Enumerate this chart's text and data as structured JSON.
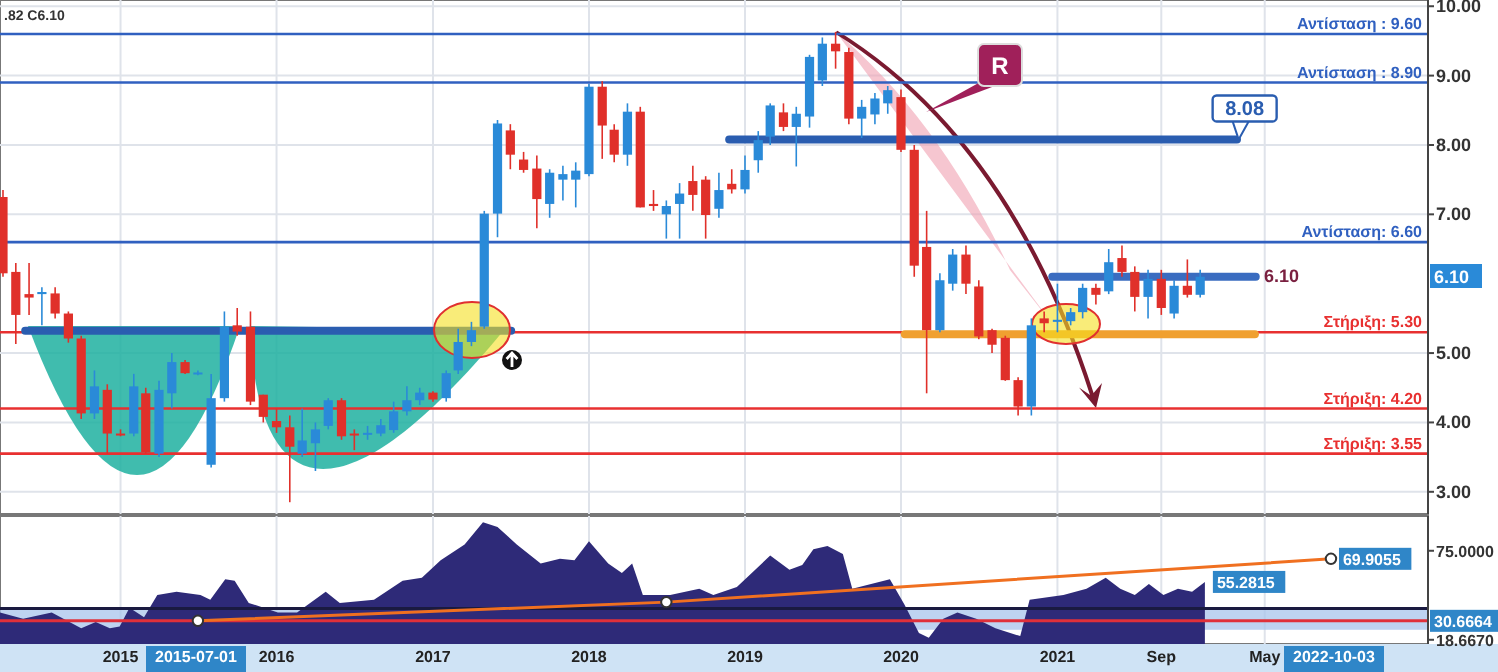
{
  "chart_data": [
    {
      "type": "candlestick",
      "tick_labels": "y",
      "grid": true,
      "xlim": [
        "2014-03-25",
        "2023-05-18"
      ],
      "ylim": [
        2.68,
        10.09
      ],
      "xticks": [
        {
          "value": "2015",
          "label": null
        },
        {
          "value": "2016",
          "label": null
        },
        {
          "value": "2017",
          "label": null
        },
        {
          "value": "2018",
          "label": null
        },
        {
          "value": "2019",
          "label": null
        },
        {
          "value": "2020",
          "label": null
        },
        {
          "value": "2021",
          "label": null
        },
        {
          "value": "2021-09",
          "label": null
        },
        {
          "value": "2022-05",
          "label": null
        }
      ],
      "yticks": [
        {
          "value": 3,
          "label": "3.00"
        },
        {
          "value": 4,
          "label": "4.00"
        },
        {
          "value": 5,
          "label": "5.00"
        },
        {
          "value": 7,
          "label": "7.00"
        },
        {
          "value": 8,
          "label": "8.00"
        },
        {
          "value": 9,
          "label": "9.00"
        },
        {
          "value": 10,
          "label": "10.00"
        }
      ],
      "x": [
        "2014-04",
        "2014-05",
        "2014-06",
        "2014-07",
        "2014-08",
        "2014-09",
        "2014-10",
        "2014-11",
        "2014-12",
        "2015-01",
        "2015-02",
        "2015-03",
        "2015-04",
        "2015-05",
        "2015-06",
        "2015-07",
        "2015-08",
        "2015-09",
        "2015-10",
        "2015-11",
        "2015-12",
        "2016-01",
        "2016-02",
        "2016-03",
        "2016-04",
        "2016-05",
        "2016-06",
        "2016-07",
        "2016-08",
        "2016-09",
        "2016-10",
        "2016-11",
        "2016-12",
        "2017-01",
        "2017-02",
        "2017-03",
        "2017-04",
        "2017-05",
        "2017-06",
        "2017-07",
        "2017-08",
        "2017-09",
        "2017-10",
        "2017-11",
        "2017-12",
        "2018-01",
        "2018-02",
        "2018-03",
        "2018-04",
        "2018-05",
        "2018-06",
        "2018-07",
        "2018-08",
        "2018-09",
        "2018-10",
        "2018-11",
        "2018-12",
        "2019-01",
        "2019-02",
        "2019-03",
        "2019-04",
        "2019-05",
        "2019-06",
        "2019-07",
        "2019-08",
        "2019-09",
        "2019-10",
        "2019-11",
        "2019-12",
        "2020-01",
        "2020-02",
        "2020-03",
        "2020-04",
        "2020-05",
        "2020-06",
        "2020-07",
        "2020-08",
        "2020-09",
        "2020-10",
        "2020-11",
        "2020-12",
        "2021-01",
        "2021-02",
        "2021-03",
        "2021-04",
        "2021-05",
        "2021-06",
        "2021-07",
        "2021-08",
        "2021-09",
        "2021-10",
        "2021-11",
        "2021-12"
      ],
      "ohlc": [
        [
          7.25,
          7.35,
          6.1,
          6.15
        ],
        [
          6.17,
          6.3,
          5.13,
          5.55
        ],
        [
          5.85,
          6.3,
          5.55,
          5.8
        ],
        [
          5.85,
          5.95,
          5.4,
          5.88
        ],
        [
          5.86,
          5.95,
          5.5,
          5.57
        ],
        [
          5.57,
          5.6,
          5.15,
          5.21
        ],
        [
          5.21,
          5.25,
          4.05,
          4.13
        ],
        [
          4.13,
          4.75,
          4.05,
          4.52
        ],
        [
          4.47,
          4.55,
          3.55,
          3.84
        ],
        [
          3.84,
          3.9,
          3.8,
          3.82
        ],
        [
          3.84,
          4.7,
          3.8,
          4.52
        ],
        [
          4.42,
          4.5,
          3.55,
          3.57
        ],
        [
          3.55,
          4.6,
          3.5,
          4.47
        ],
        [
          4.42,
          5.0,
          4.2,
          4.87
        ],
        [
          4.87,
          4.9,
          4.7,
          4.71
        ],
        [
          4.71,
          4.75,
          4.68,
          4.72
        ],
        [
          3.39,
          4.7,
          3.35,
          4.35
        ],
        [
          4.35,
          5.6,
          4.3,
          5.38
        ],
        [
          5.4,
          5.65,
          5.25,
          5.31
        ],
        [
          5.38,
          5.6,
          4.25,
          4.3
        ],
        [
          4.4,
          4.4,
          4.0,
          4.08
        ],
        [
          4.02,
          4.2,
          3.85,
          3.93
        ],
        [
          3.93,
          4.1,
          2.85,
          3.65
        ],
        [
          3.55,
          4.2,
          3.5,
          3.74
        ],
        [
          3.7,
          4.0,
          3.3,
          3.9
        ],
        [
          3.95,
          4.35,
          3.9,
          4.32
        ],
        [
          4.32,
          4.35,
          3.75,
          3.8
        ],
        [
          3.84,
          3.9,
          3.6,
          3.83
        ],
        [
          3.83,
          3.95,
          3.75,
          3.85
        ],
        [
          3.84,
          4.05,
          3.8,
          3.96
        ],
        [
          3.89,
          4.3,
          3.85,
          4.16
        ],
        [
          4.16,
          4.52,
          4.1,
          4.32
        ],
        [
          4.32,
          4.5,
          4.25,
          4.43
        ],
        [
          4.43,
          4.45,
          4.3,
          4.33
        ],
        [
          4.35,
          4.75,
          4.3,
          4.71
        ],
        [
          4.75,
          5.35,
          4.7,
          5.16
        ],
        [
          5.16,
          5.45,
          5.1,
          5.33
        ],
        [
          5.38,
          7.05,
          5.35,
          7.01
        ],
        [
          7.01,
          8.36,
          6.67,
          8.31
        ],
        [
          8.21,
          8.3,
          7.65,
          7.86
        ],
        [
          7.79,
          7.9,
          7.6,
          7.64
        ],
        [
          7.66,
          7.85,
          6.8,
          7.22
        ],
        [
          7.15,
          7.65,
          6.95,
          7.6
        ],
        [
          7.5,
          7.7,
          7.2,
          7.58
        ],
        [
          7.5,
          7.75,
          7.1,
          7.63
        ],
        [
          7.58,
          8.88,
          7.55,
          8.84
        ],
        [
          8.84,
          8.92,
          7.8,
          8.28
        ],
        [
          8.22,
          8.3,
          7.75,
          7.86
        ],
        [
          7.86,
          8.6,
          7.7,
          8.48
        ],
        [
          8.48,
          8.55,
          7.1,
          7.1
        ],
        [
          7.15,
          7.35,
          7.05,
          7.12
        ],
        [
          7.0,
          7.2,
          6.65,
          7.12
        ],
        [
          7.15,
          7.45,
          6.65,
          7.3
        ],
        [
          7.48,
          7.7,
          7.05,
          7.28
        ],
        [
          7.5,
          7.55,
          6.65,
          6.99
        ],
        [
          7.08,
          7.6,
          6.95,
          7.35
        ],
        [
          7.44,
          7.65,
          7.3,
          7.36
        ],
        [
          7.36,
          7.85,
          7.3,
          7.64
        ],
        [
          7.78,
          8.2,
          7.6,
          8.07
        ],
        [
          8.12,
          8.6,
          8.0,
          8.57
        ],
        [
          8.47,
          8.6,
          8.2,
          8.26
        ],
        [
          8.26,
          8.55,
          7.69,
          8.45
        ],
        [
          8.41,
          9.3,
          8.25,
          9.27
        ],
        [
          8.93,
          9.55,
          8.85,
          9.46
        ],
        [
          9.46,
          9.63,
          9.1,
          9.35
        ],
        [
          9.34,
          9.4,
          8.3,
          8.38
        ],
        [
          8.38,
          8.65,
          8.1,
          8.55
        ],
        [
          8.44,
          8.75,
          8.3,
          8.67
        ],
        [
          8.6,
          8.85,
          8.45,
          8.79
        ],
        [
          8.69,
          8.8,
          7.9,
          7.93
        ],
        [
          7.93,
          8.0,
          6.1,
          6.26
        ],
        [
          6.53,
          7.05,
          4.42,
          5.33
        ],
        [
          5.33,
          6.15,
          5.3,
          6.05
        ],
        [
          6.0,
          6.5,
          5.9,
          6.42
        ],
        [
          6.42,
          6.55,
          5.85,
          6.0
        ],
        [
          5.96,
          6.05,
          5.2,
          5.24
        ],
        [
          5.33,
          5.35,
          5.0,
          5.12
        ],
        [
          5.22,
          5.25,
          4.6,
          4.61
        ],
        [
          4.61,
          4.65,
          4.1,
          4.23
        ],
        [
          4.23,
          5.5,
          4.1,
          5.4
        ],
        [
          5.5,
          5.6,
          5.3,
          5.43
        ],
        [
          5.45,
          6.0,
          5.3,
          5.48
        ],
        [
          5.46,
          5.65,
          5.4,
          5.59
        ],
        [
          5.59,
          6.0,
          5.5,
          5.94
        ],
        [
          5.94,
          6.0,
          5.7,
          5.84
        ],
        [
          5.89,
          6.5,
          5.85,
          6.31
        ],
        [
          6.37,
          6.55,
          6.1,
          6.17
        ],
        [
          6.17,
          6.25,
          5.6,
          5.81
        ],
        [
          5.81,
          6.2,
          5.5,
          6.07
        ],
        [
          6.07,
          6.2,
          5.55,
          5.65
        ],
        [
          5.57,
          6.05,
          5.5,
          5.97
        ],
        [
          5.97,
          6.35,
          5.8,
          5.84
        ],
        [
          5.84,
          6.2,
          5.8,
          6.1
        ]
      ],
      "series": [
        {
          "type": "line",
          "color": "#2a5db0",
          "x": [
            "2014-05-23",
            "2017-07-03"
          ],
          "values": [
            5.32,
            5.32
          ]
        },
        {
          "type": "line",
          "color": "#f0a030",
          "x": [
            "2020-01-10",
            "2022-04-08"
          ],
          "values": [
            5.27,
            5.27
          ]
        },
        {
          "type": "line",
          "color": "#2a5db0",
          "x": [
            "2018-11-25",
            "2022-02-25"
          ],
          "values": [
            8.08,
            8.08
          ]
        },
        {
          "type": "line",
          "color": "#3a6cc0",
          "x": [
            "2020-12-20",
            "2022-04-10"
          ],
          "values": [
            6.1,
            6.1
          ]
        }
      ],
      "ref_lines": [
        {
          "axis": "y",
          "value": 9.6,
          "label": "Αντίσταση : 9.60",
          "color": "#3060c0"
        },
        {
          "axis": "y",
          "value": 8.9,
          "label": "Αντίσταση : 8.90",
          "color": "#3060c0"
        },
        {
          "axis": "y",
          "value": 6.6,
          "label": "Αντίσταση: 6.60",
          "color": "#3060c0"
        },
        {
          "axis": "y",
          "value": 5.3,
          "label": "Στήριξη: 5.30",
          "color": "#e83030"
        },
        {
          "axis": "y",
          "value": 4.2,
          "label": "Στήριξη: 4.20",
          "color": "#e83030"
        },
        {
          "axis": "y",
          "value": 3.55,
          "label": "Στήριξη: 3.55",
          "color": "#e83030"
        }
      ],
      "annotations": [
        ".82 C6.10",
        "R",
        "6.10",
        "6.10",
        {
          "text": "8.08",
          "x": "2022-03-15",
          "y": 8.08
        }
      ]
    },
    {
      "type": "area",
      "grid": "x",
      "xlim": [
        "2014-03-25",
        "2023-05-18"
      ],
      "ylim": [
        16,
        97
      ],
      "xticks": [
        "2015",
        "2016",
        "2017",
        "2018",
        "2019",
        "2020",
        "2021",
        {
          "value": "2021-09",
          "label": "Sep"
        },
        {
          "value": "2022-05",
          "label": "May"
        }
      ],
      "yticks": [
        {
          "value": 75,
          "label": "75.0000"
        },
        {
          "value": 18.667,
          "label": "18.6670"
        }
      ],
      "series": [
        {
          "type": "area",
          "color": "#2e2a78",
          "x": [
            "2014-03-25",
            "2014-05-18",
            "2014-07-24",
            "2014-10-01",
            "2014-11-04",
            "2014-12-07",
            "2014-12-30",
            "2015-01-22",
            "2015-02-25",
            "2015-03-28",
            "2015-05-12",
            "2015-07-07",
            "2015-07-30",
            "2015-09-03",
            "2015-09-25",
            "2015-10-28",
            "2016-01-04",
            "2016-02-18",
            "2016-04-25",
            "2016-05-28",
            "2016-08-16",
            "2016-10-22",
            "2016-12-06",
            "2017-01-19",
            "2017-03-16",
            "2017-04-28",
            "2017-06-01",
            "2017-07-16",
            "2017-09-10",
            "2017-10-25",
            "2017-11-28",
            "2018-01-01",
            "2018-02-15",
            "2018-03-19",
            "2018-04-12",
            "2018-05-07",
            "2018-07-10",
            "2018-09-16",
            "2018-10-19",
            "2018-12-13",
            "2019-03-01",
            "2019-04-15",
            "2019-05-15",
            "2019-06-10",
            "2019-07-13",
            "2019-08-18",
            "2019-09-09",
            "2019-12-06",
            "2020-01-09",
            "2020-02-12",
            "2020-03-06",
            "2020-04-09",
            "2020-05-12",
            "2020-06-25",
            "2020-08-09",
            "2020-10-06",
            "2020-10-28",
            "2021-01-15",
            "2021-03-10",
            "2021-04-24",
            "2021-05-28",
            "2021-07-01",
            "2021-08-03",
            "2021-09-06",
            "2021-10-10",
            "2021-11-12",
            "2021-12-12"
          ],
          "values": [
            36,
            32,
            36,
            26,
            30,
            26,
            27,
            39,
            33,
            47,
            49,
            47,
            44,
            57,
            56,
            42,
            36,
            36,
            49,
            42,
            44,
            56,
            58,
            69,
            79,
            93,
            90,
            79,
            67,
            70,
            69,
            81,
            67,
            61,
            67,
            47,
            47,
            51,
            47,
            52,
            72,
            63,
            66,
            76,
            78,
            73,
            51,
            57,
            41,
            23,
            20,
            32,
            36,
            32,
            26,
            21,
            44,
            47,
            51,
            58,
            51,
            47,
            54,
            47,
            51,
            49,
            55.2815
          ],
          "value_labels": [
            null,
            null,
            null,
            null,
            null,
            null,
            null,
            null,
            null,
            null,
            null,
            null,
            null,
            null,
            null,
            null,
            null,
            null,
            null,
            null,
            null,
            null,
            null,
            null,
            null,
            null,
            null,
            null,
            null,
            null,
            null,
            null,
            null,
            null,
            null,
            null,
            null,
            null,
            null,
            null,
            null,
            null,
            null,
            null,
            null,
            null,
            null,
            null,
            null,
            null,
            null,
            null,
            null,
            null,
            null,
            null,
            null,
            null,
            null,
            null,
            null,
            null,
            null,
            null,
            null,
            null,
            "55.2815"
          ]
        },
        {
          "type": "line",
          "color": "#f07020",
          "marker": "circle",
          "x": [
            "2015-07-01",
            "2018-07-01",
            "2022-10-03"
          ],
          "values": [
            30.6664,
            42.5,
            69.9055
          ],
          "value_labels": [
            null,
            null,
            "69.9055"
          ]
        }
      ],
      "bands": [
        {
          "axis": "y",
          "from": 25,
          "to": 39,
          "color": "#a8c4ec"
        }
      ],
      "ref_lines": [
        {
          "axis": "y",
          "value": 38.5,
          "color": "#1a1a40"
        },
        {
          "axis": "y",
          "value": 30.6664,
          "label": "30.6664",
          "color": "#e0303a"
        }
      ],
      "annotations": [
        "2015-07-01",
        "2022-10-03"
      ]
    }
  ]
}
